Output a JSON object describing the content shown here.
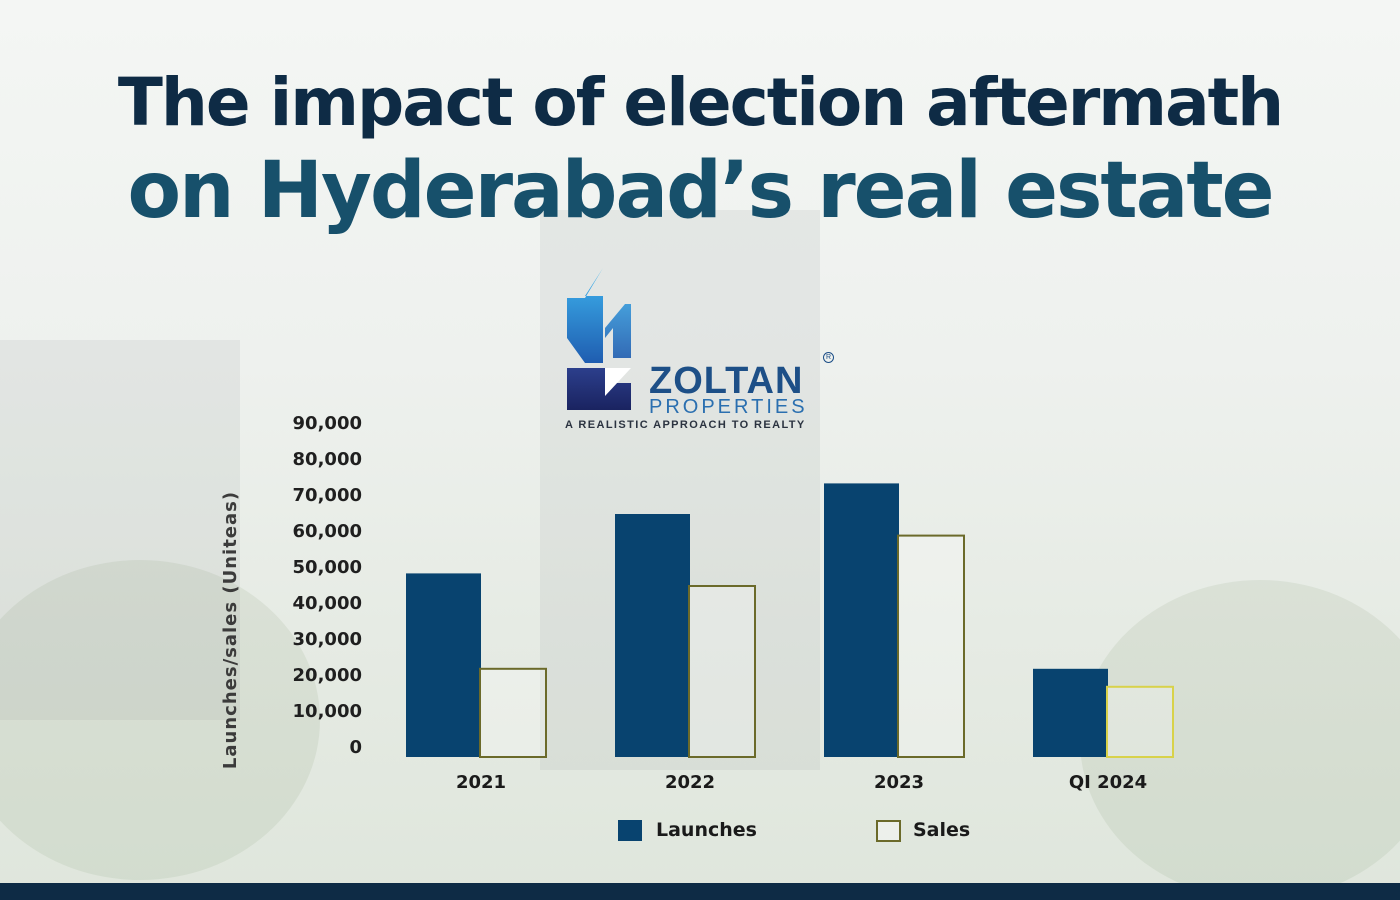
{
  "header": {
    "title_line1": "The impact of election aftermath",
    "title_line2": "on Hyderabad’s real estate"
  },
  "logo": {
    "name": "ZOLTAN",
    "registered": "R",
    "sub": "PROPERTIES",
    "tagline": "A REALISTIC APPROACH TO REALTY"
  },
  "colors": {
    "title_dark": "#0e2b45",
    "title_teal": "#17506b",
    "launches": "#08436f",
    "sales_border": "#6b6a2a",
    "sales_border_q1": "#d8d24a",
    "footer": "#0e2b45"
  },
  "chart_data": {
    "type": "bar",
    "categories": [
      "2021",
      "2022",
      "2023",
      "QI 2024"
    ],
    "series": [
      {
        "name": "Launches",
        "values": [
          51000,
          67500,
          76000,
          24500
        ]
      },
      {
        "name": "Sales",
        "values": [
          24500,
          47500,
          61500,
          19500
        ]
      }
    ],
    "ylabel": "Launches/sales (Uniteas)",
    "yticks": [
      "0",
      "10,000",
      "20,000",
      "30,000",
      "40,000",
      "50,000",
      "60,000",
      "70,000",
      "80,000",
      "90,000"
    ],
    "ylim": [
      0,
      90000
    ],
    "grid": false,
    "legend": {
      "placement": "bottom",
      "entries": [
        "Launches",
        "Sales"
      ]
    }
  }
}
